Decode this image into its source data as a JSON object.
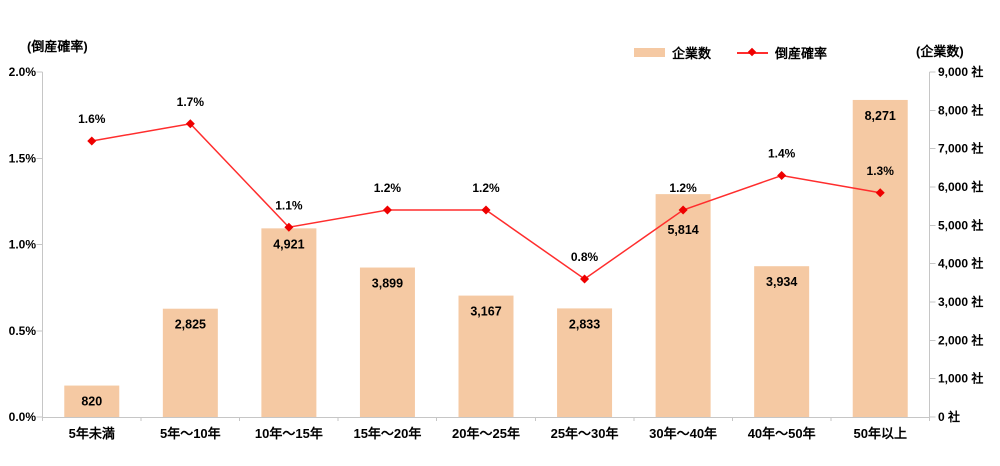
{
  "chart_data": {
    "type": "combo-bar-line",
    "categories": [
      "5年未満",
      "5年～10年",
      "10年～15年",
      "15年～20年",
      "20年～25年",
      "25年～30年",
      "30年～40年",
      "40年～50年",
      "50年以上"
    ],
    "series": [
      {
        "name": "企業数",
        "type": "bar",
        "axis": "right",
        "values": [
          820,
          2825,
          4921,
          3899,
          3167,
          2833,
          5814,
          3934,
          8271
        ],
        "value_labels": [
          "820",
          "2,825",
          "4,921",
          "3,899",
          "3,167",
          "2,833",
          "5,814",
          "3,934",
          "8,271"
        ]
      },
      {
        "name": "倒産確率",
        "type": "line",
        "axis": "left",
        "values": [
          1.6,
          1.7,
          1.1,
          1.2,
          1.2,
          0.8,
          1.2,
          1.4,
          1.3
        ],
        "value_labels": [
          "1.6%",
          "1.7%",
          "1.1%",
          "1.2%",
          "1.2%",
          "0.8%",
          "1.2%",
          "1.4%",
          "1.3%"
        ]
      }
    ],
    "left_axis": {
      "title": "(倒産確率)",
      "min": 0,
      "max": 2,
      "tick_labels": [
        "2.0%",
        "1.5%",
        "1.0%",
        "0.5%",
        "0.0%"
      ]
    },
    "right_axis": {
      "title": "(企業数)",
      "min": 0,
      "max": 9000,
      "tick_labels": [
        "9,000 社",
        "8,000 社",
        "7,000 社",
        "6,000 社",
        "5,000 社",
        "4,000 社",
        "3,000 社",
        "2,000 社",
        "1,000 社",
        "0 社"
      ]
    },
    "legend": {
      "bar_label": "企業数",
      "line_label": "倒産確率"
    },
    "grid": "off",
    "legend_position": "top-right"
  },
  "colors": {
    "bar": "#F5C9A3",
    "line": "#FF2D2D",
    "marker": "#EE0000",
    "axis": "#C6C6C6",
    "text": "#000000"
  }
}
